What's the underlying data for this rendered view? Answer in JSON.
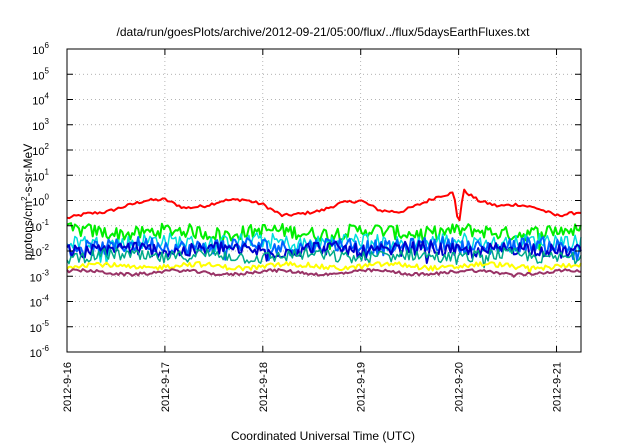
{
  "chart_data": {
    "type": "line",
    "title": "/data/run/goesPlots/archive/2012-09-21/05:00/flux/../flux/5daysEarthFluxes.txt",
    "xlabel": "Coordinated Universal Time (UTC)",
    "ylabel_parts": [
      "protons/cm",
      "2",
      "-s-sr-MeV"
    ],
    "y_scale": "log",
    "ylim_exponents": [
      -6,
      6
    ],
    "y_tick_exponents": [
      -6,
      -5,
      -4,
      -3,
      -2,
      -1,
      0,
      1,
      2,
      3,
      4,
      5,
      6
    ],
    "y_tick_base": "10",
    "x_tick_labels": [
      "2012-9-16",
      "2012-9-17",
      "2012-9-18",
      "2012-9-19",
      "2012-9-20",
      "2012-9-21"
    ],
    "x_range_days": [
      0,
      5.25
    ],
    "grid": true,
    "series": [
      {
        "color": "#ff0000",
        "mean_log": -0.78,
        "noise": 0.12,
        "width": 2,
        "x": [
          0,
          0.2,
          0.4,
          0.6,
          0.8,
          1.0,
          1.2,
          1.4,
          1.6,
          1.8,
          2.0,
          2.2,
          2.4,
          2.6,
          2.8,
          3.0,
          3.2,
          3.4,
          3.6,
          3.8,
          3.95,
          4.0,
          4.05,
          4.2,
          4.4,
          4.6,
          4.8,
          5.0,
          5.25
        ],
        "y": [
          0.2,
          0.3,
          0.35,
          0.6,
          1.0,
          1.1,
          0.5,
          0.6,
          1.0,
          1.1,
          0.7,
          0.25,
          0.3,
          0.4,
          0.8,
          1.0,
          0.4,
          0.35,
          0.7,
          1.5,
          2.0,
          0.1,
          2.5,
          1.0,
          0.6,
          0.7,
          0.5,
          0.25,
          0.35
        ]
      },
      {
        "color": "#00ee00",
        "mean_log": -1.25,
        "noise": 0.28,
        "width": 2
      },
      {
        "color": "#00dddd",
        "mean_log": -1.65,
        "noise": 0.32,
        "width": 1.5
      },
      {
        "color": "#0066ff",
        "mean_log": -1.8,
        "noise": 0.3,
        "width": 2
      },
      {
        "color": "#0000cc",
        "mean_log": -1.95,
        "noise": 0.28,
        "width": 2
      },
      {
        "color": "#00aa88",
        "mean_log": -2.2,
        "noise": 0.25,
        "width": 1.5
      },
      {
        "color": "#ffff00",
        "mean_log": -2.6,
        "noise": 0.1,
        "width": 2
      },
      {
        "color": "#993366",
        "mean_log": -2.85,
        "noise": 0.06,
        "width": 2
      }
    ]
  }
}
